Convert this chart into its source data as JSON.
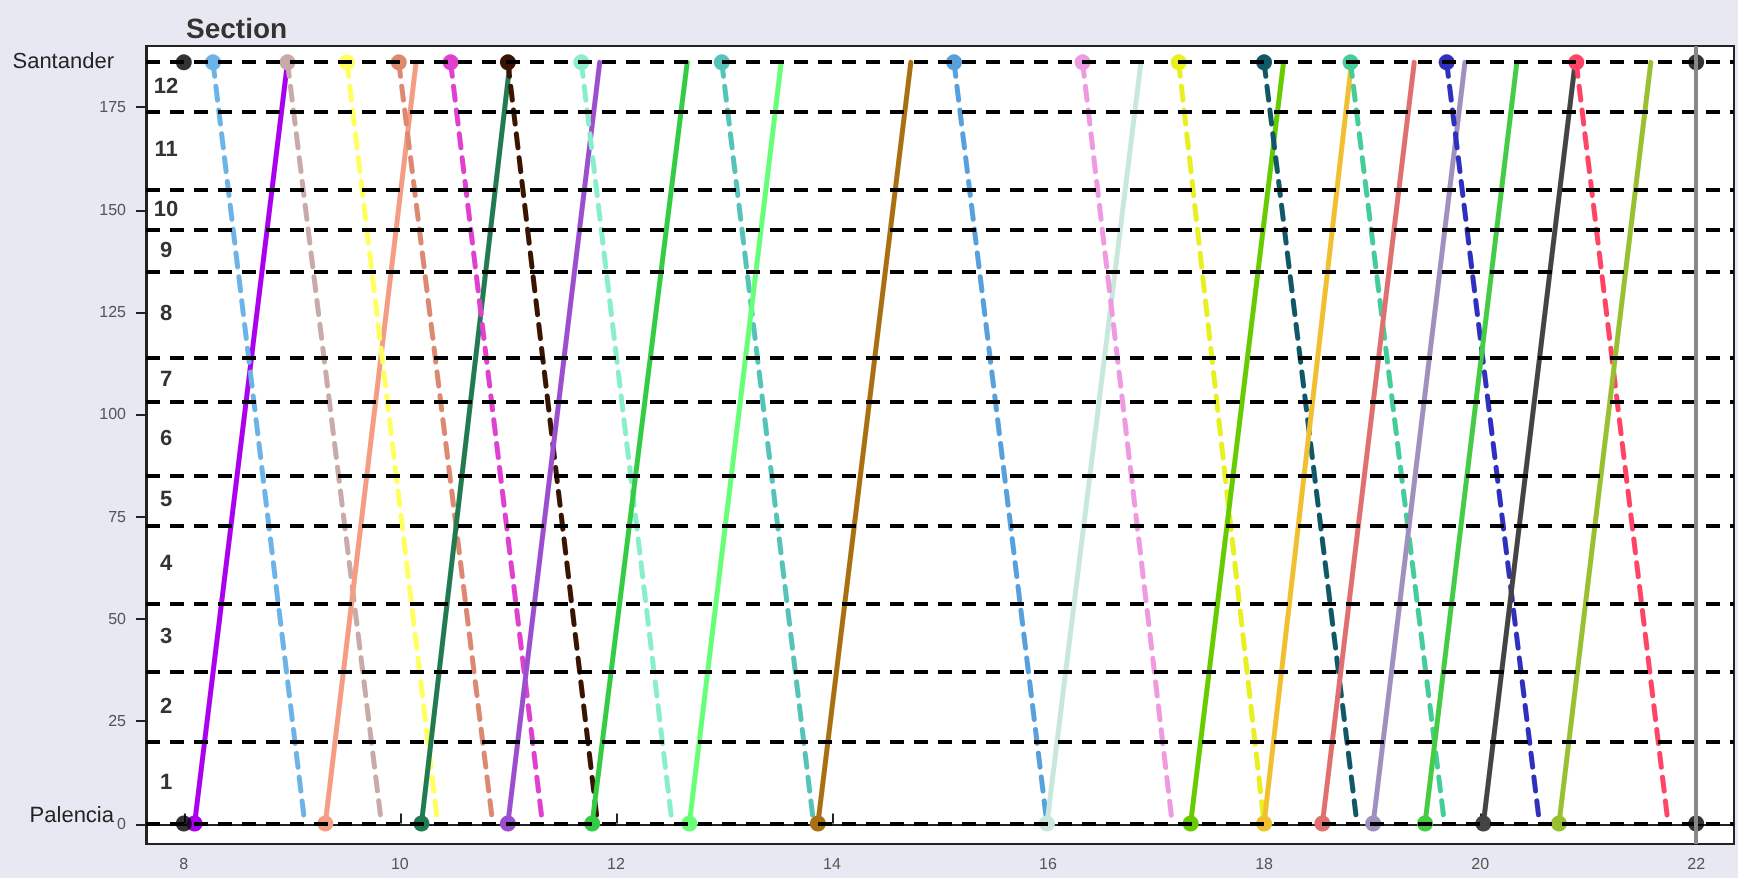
{
  "chart_data": {
    "type": "line",
    "title": "Section",
    "xlim": [
      7.65,
      22.35
    ],
    "xticks": [
      8,
      10,
      12,
      14,
      16,
      18,
      20,
      22
    ],
    "ylim": [
      -5,
      190
    ],
    "yticks": [
      0,
      25,
      50,
      75,
      100,
      125,
      150,
      175
    ],
    "grid": false,
    "marker": "circle",
    "line_style": "solid",
    "ref_lines": [
      {
        "axis": "y",
        "value": 186,
        "label": null,
        "color": "#000000",
        "line_style": "dashed"
      },
      {
        "axis": "y",
        "value": 174,
        "label": null,
        "color": "#000000",
        "line_style": "dashed"
      },
      {
        "axis": "y",
        "value": 155,
        "label": null,
        "color": "#000000",
        "line_style": "dashed"
      },
      {
        "axis": "y",
        "value": 145,
        "label": null,
        "color": "#000000",
        "line_style": "dashed"
      },
      {
        "axis": "y",
        "value": 135,
        "label": null,
        "color": "#000000",
        "line_style": "dashed"
      },
      {
        "axis": "y",
        "value": 114,
        "label": null,
        "color": "#000000",
        "line_style": "dashed"
      },
      {
        "axis": "y",
        "value": 103,
        "label": null,
        "color": "#000000",
        "line_style": "dashed"
      },
      {
        "axis": "y",
        "value": 85,
        "label": null,
        "color": "#000000",
        "line_style": "dashed"
      },
      {
        "axis": "y",
        "value": 73,
        "label": null,
        "color": "#000000",
        "line_style": "dashed"
      },
      {
        "axis": "y",
        "value": 54,
        "label": null,
        "color": "#000000",
        "line_style": "dashed"
      },
      {
        "axis": "y",
        "value": 37,
        "label": null,
        "color": "#000000",
        "line_style": "dashed"
      },
      {
        "axis": "y",
        "value": 20,
        "label": null,
        "color": "#000000",
        "line_style": "dashed"
      },
      {
        "axis": "y",
        "value": 0,
        "label": null,
        "color": "#000000",
        "line_style": "dashed"
      },
      {
        "axis": "x",
        "value": 22,
        "label": null,
        "color": "#888888",
        "line_style": "solid"
      }
    ],
    "annotations": [
      "Santander",
      "Palencia",
      "1",
      "2",
      "3",
      "4",
      "5",
      "6",
      "7",
      "8",
      "9",
      "10",
      "11",
      "12"
    ],
    "series": [
      {
        "color": "#000000",
        "type": "scatter",
        "x": [
          8,
          8,
          22,
          22
        ],
        "values": [
          0,
          186,
          0,
          186
        ]
      },
      {
        "color": "#aa00ee",
        "x": [
          8.1,
          8.96
        ],
        "values": [
          0,
          186
        ]
      },
      {
        "color": "#6cb4e8",
        "line_style": "dashed",
        "x": [
          8.27,
          9.12
        ],
        "values": [
          186,
          0
        ]
      },
      {
        "color": "#c8aaa8",
        "line_style": "dashed",
        "x": [
          8.96,
          9.83
        ],
        "values": [
          186,
          0
        ]
      },
      {
        "color": "#f59c84",
        "x": [
          9.31,
          10.15
        ],
        "values": [
          0,
          186
        ]
      },
      {
        "color": "#ffff60",
        "line_style": "dashed",
        "x": [
          9.51,
          10.35
        ],
        "values": [
          186,
          0
        ]
      },
      {
        "color": "#dd8870",
        "line_style": "dashed",
        "x": [
          9.99,
          10.86
        ],
        "values": [
          186,
          0
        ]
      },
      {
        "color": "#217a50",
        "x": [
          10.2,
          11.02
        ],
        "values": [
          0,
          186
        ]
      },
      {
        "color": "#e040d0",
        "line_style": "dashed",
        "x": [
          10.47,
          11.32
        ],
        "values": [
          186,
          0
        ]
      },
      {
        "color": "#3a1400",
        "line_style": "dashed",
        "x": [
          11.0,
          11.83
        ],
        "values": [
          186,
          0
        ]
      },
      {
        "color": "#9b4fcf",
        "x": [
          11.0,
          11.85
        ],
        "values": [
          0,
          186
        ]
      },
      {
        "color": "#88eecc",
        "line_style": "dashed",
        "x": [
          11.68,
          12.52
        ],
        "values": [
          186,
          0
        ]
      },
      {
        "color": "#33cc44",
        "x": [
          11.78,
          12.66
        ],
        "values": [
          0,
          186
        ]
      },
      {
        "color": "#55c4b8",
        "line_style": "dashed",
        "x": [
          12.98,
          13.83
        ],
        "values": [
          186,
          0
        ]
      },
      {
        "color": "#66ff77",
        "x": [
          12.68,
          13.53
        ],
        "values": [
          0,
          186
        ]
      },
      {
        "color": "#a87010",
        "x": [
          13.87,
          14.73
        ],
        "values": [
          0,
          186
        ]
      },
      {
        "color": "#55a0dd",
        "line_style": "dashed",
        "x": [
          15.13,
          15.99
        ],
        "values": [
          186,
          0
        ]
      },
      {
        "color": "#c8e8dc",
        "x": [
          15.99,
          16.86
        ],
        "values": [
          0,
          186
        ]
      },
      {
        "color": "#ee99e0",
        "line_style": "dashed",
        "x": [
          16.32,
          17.15
        ],
        "values": [
          186,
          0
        ]
      },
      {
        "color": "#e8f020",
        "line_style": "dashed",
        "x": [
          17.21,
          18.0
        ],
        "values": [
          186,
          0
        ]
      },
      {
        "color": "#66cc00",
        "x": [
          17.32,
          18.18
        ],
        "values": [
          0,
          186
        ]
      },
      {
        "color": "#105868",
        "line_style": "dashed",
        "x": [
          18.0,
          18.86
        ],
        "values": [
          186,
          0
        ]
      },
      {
        "color": "#f0c030",
        "x": [
          18.0,
          18.81
        ],
        "values": [
          0,
          186
        ]
      },
      {
        "color": "#44cc99",
        "line_style": "dashed",
        "x": [
          18.8,
          19.67
        ],
        "values": [
          186,
          0
        ]
      },
      {
        "color": "#e07070",
        "x": [
          18.54,
          19.39
        ],
        "values": [
          0,
          186
        ]
      },
      {
        "color": "#a090c0",
        "x": [
          19.01,
          19.86
        ],
        "values": [
          0,
          186
        ]
      },
      {
        "color": "#3030c0",
        "line_style": "dashed",
        "x": [
          19.69,
          20.55
        ],
        "values": [
          186,
          0
        ]
      },
      {
        "color": "#44cc44",
        "x": [
          19.49,
          20.34
        ],
        "values": [
          0,
          186
        ]
      },
      {
        "color": "#444444",
        "x": [
          20.03,
          20.88
        ],
        "values": [
          0,
          186
        ]
      },
      {
        "color": "#ff4466",
        "line_style": "dashed",
        "x": [
          20.89,
          21.74
        ],
        "values": [
          186,
          0
        ]
      },
      {
        "color": "#99c030",
        "x": [
          20.73,
          21.58
        ],
        "values": [
          0,
          186
        ]
      }
    ]
  }
}
